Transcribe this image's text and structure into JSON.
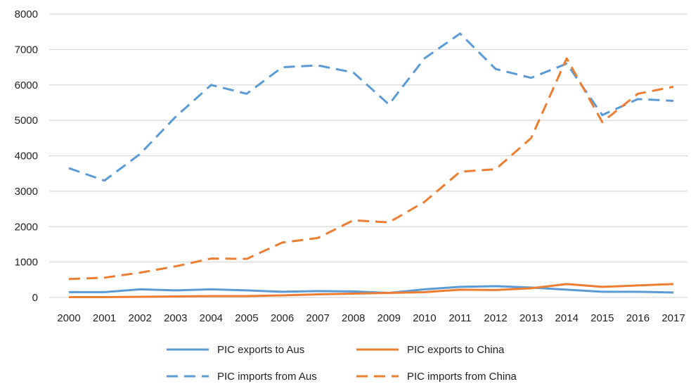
{
  "chart_data": {
    "type": "line",
    "x": [
      2000,
      2001,
      2002,
      2003,
      2004,
      2005,
      2006,
      2007,
      2008,
      2009,
      2010,
      2011,
      2012,
      2013,
      2014,
      2015,
      2016,
      2017
    ],
    "ylim": [
      0,
      8000
    ],
    "yticks": [
      0,
      1000,
      2000,
      3000,
      4000,
      5000,
      6000,
      7000,
      8000
    ],
    "grid": "horizontal",
    "legend": "bottom",
    "series": [
      {
        "name": "PIC exports to Aus",
        "color": "#5b9bd5",
        "style": "solid",
        "values": [
          150,
          150,
          230,
          200,
          230,
          200,
          160,
          180,
          170,
          130,
          230,
          300,
          320,
          280,
          220,
          160,
          160,
          140
        ]
      },
      {
        "name": "PIC exports to China",
        "color": "#ed7d31",
        "style": "solid",
        "values": [
          10,
          10,
          20,
          30,
          40,
          40,
          60,
          90,
          110,
          130,
          150,
          220,
          210,
          260,
          380,
          300,
          340,
          380
        ]
      },
      {
        "name": "PIC imports from Aus",
        "color": "#5b9bd5",
        "style": "dashed",
        "values": [
          3650,
          3300,
          4050,
          5100,
          6000,
          5750,
          6500,
          6550,
          6350,
          5450,
          6750,
          7450,
          6450,
          6200,
          6600,
          5150,
          5600,
          5550
        ]
      },
      {
        "name": "PIC imports from China",
        "color": "#ed7d31",
        "style": "dashed",
        "values": [
          520,
          560,
          700,
          880,
          1100,
          1090,
          1550,
          1680,
          2180,
          2120,
          2700,
          3550,
          3620,
          4500,
          6750,
          4950,
          5750,
          5950
        ]
      }
    ]
  }
}
